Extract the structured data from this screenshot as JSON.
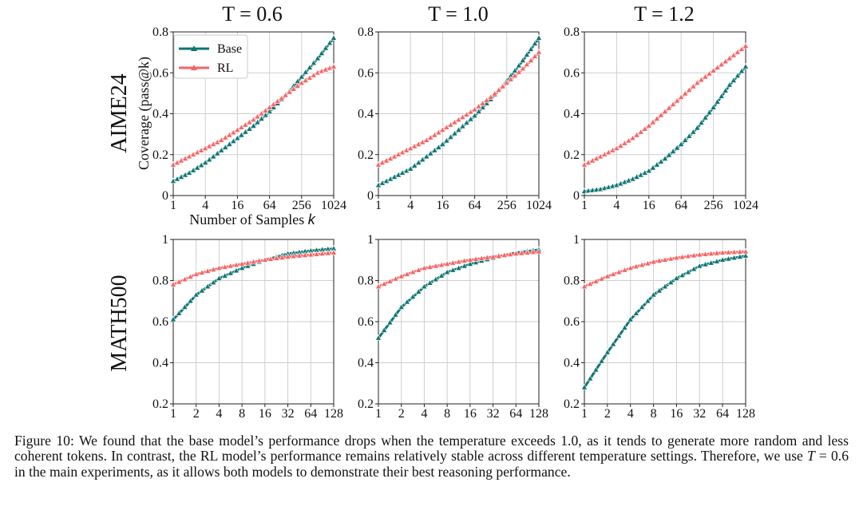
{
  "figure": {
    "column_titles": [
      "T = 0.6",
      "T = 1.0",
      "T = 1.2"
    ],
    "row_titles": [
      "AIME24",
      "MATH500"
    ],
    "ylabel": "Coverage (pass@k)",
    "xlabel_prefix": "Number of Samples ",
    "xlabel_var": "k"
  },
  "caption": {
    "before_t": "Figure 10: We found that the base model’s performance drops when the temperature exceeds 1.0, as it tends to generate more random and less coherent tokens. In contrast, the RL model’s performance remains relatively stable across different temperature settings. Therefore, we use ",
    "t_symbol": "T",
    "eq_value": " = 0.6",
    "after_t": " in the main experiments, as it allows both models to demonstrate their best reasoning performance."
  },
  "colors": {
    "base": "#0e7474",
    "rl": "#f26666",
    "grid": "#cfcfcf"
  },
  "chart_data": [
    {
      "id": "aime-t06",
      "type": "line",
      "row": "AIME24",
      "title": "T = 0.6",
      "x_scale": "log2",
      "xlim": [
        1,
        1024
      ],
      "xticks": [
        1,
        4,
        16,
        64,
        256,
        1024
      ],
      "xtick_labels": [
        "1",
        "4",
        "16",
        "64",
        "256",
        "1024"
      ],
      "ylim": [
        0,
        0.8
      ],
      "yticks": [
        0,
        0.2,
        0.4,
        0.6,
        0.8
      ],
      "ytick_labels": [
        "0",
        "0.2",
        "0.4",
        "0.6",
        "0.8"
      ],
      "ylabel": "Coverage (pass@k)",
      "xlabel": "Number of Samples k",
      "legend": "top-left",
      "grid": true,
      "series": [
        {
          "name": "Base",
          "points": [
            [
              1,
              0.07
            ],
            [
              2,
              0.11
            ],
            [
              4,
              0.16
            ],
            [
              8,
              0.22
            ],
            [
              16,
              0.28
            ],
            [
              32,
              0.34
            ],
            [
              64,
              0.41
            ],
            [
              128,
              0.49
            ],
            [
              256,
              0.58
            ],
            [
              512,
              0.67
            ],
            [
              1024,
              0.77
            ]
          ]
        },
        {
          "name": "RL",
          "points": [
            [
              1,
              0.15
            ],
            [
              2,
              0.19
            ],
            [
              4,
              0.23
            ],
            [
              8,
              0.27
            ],
            [
              16,
              0.32
            ],
            [
              32,
              0.37
            ],
            [
              64,
              0.43
            ],
            [
              128,
              0.49
            ],
            [
              256,
              0.55
            ],
            [
              512,
              0.6
            ],
            [
              1024,
              0.63
            ]
          ]
        }
      ]
    },
    {
      "id": "aime-t10",
      "type": "line",
      "row": "AIME24",
      "title": "T = 1.0",
      "x_scale": "log2",
      "xlim": [
        1,
        1024
      ],
      "xticks": [
        1,
        4,
        16,
        64,
        256,
        1024
      ],
      "xtick_labels": [
        "1",
        "4",
        "16",
        "64",
        "256",
        "1024"
      ],
      "ylim": [
        0,
        0.8
      ],
      "yticks": [
        0,
        0.2,
        0.4,
        0.6,
        0.8
      ],
      "ytick_labels": [
        "0",
        "0.2",
        "0.4",
        "0.6",
        "0.8"
      ],
      "grid": true,
      "series": [
        {
          "name": "Base",
          "points": [
            [
              1,
              0.05
            ],
            [
              2,
              0.09
            ],
            [
              4,
              0.13
            ],
            [
              8,
              0.19
            ],
            [
              16,
              0.25
            ],
            [
              32,
              0.32
            ],
            [
              64,
              0.39
            ],
            [
              128,
              0.47
            ],
            [
              256,
              0.56
            ],
            [
              512,
              0.66
            ],
            [
              1024,
              0.77
            ]
          ]
        },
        {
          "name": "RL",
          "points": [
            [
              1,
              0.15
            ],
            [
              2,
              0.19
            ],
            [
              4,
              0.23
            ],
            [
              8,
              0.27
            ],
            [
              16,
              0.32
            ],
            [
              32,
              0.37
            ],
            [
              64,
              0.42
            ],
            [
              128,
              0.48
            ],
            [
              256,
              0.55
            ],
            [
              512,
              0.62
            ],
            [
              1024,
              0.7
            ]
          ]
        }
      ]
    },
    {
      "id": "aime-t12",
      "type": "line",
      "row": "AIME24",
      "title": "T = 1.2",
      "x_scale": "log2",
      "xlim": [
        1,
        1024
      ],
      "xticks": [
        1,
        4,
        16,
        64,
        256,
        1024
      ],
      "xtick_labels": [
        "1",
        "4",
        "16",
        "64",
        "256",
        "1024"
      ],
      "ylim": [
        0,
        0.8
      ],
      "yticks": [
        0,
        0.2,
        0.4,
        0.6,
        0.8
      ],
      "ytick_labels": [
        "0",
        "0.2",
        "0.4",
        "0.6",
        "0.8"
      ],
      "grid": true,
      "series": [
        {
          "name": "Base",
          "points": [
            [
              1,
              0.02
            ],
            [
              2,
              0.03
            ],
            [
              4,
              0.05
            ],
            [
              8,
              0.08
            ],
            [
              16,
              0.12
            ],
            [
              32,
              0.18
            ],
            [
              64,
              0.25
            ],
            [
              128,
              0.33
            ],
            [
              256,
              0.43
            ],
            [
              512,
              0.54
            ],
            [
              1024,
              0.63
            ]
          ]
        },
        {
          "name": "RL",
          "points": [
            [
              1,
              0.15
            ],
            [
              2,
              0.19
            ],
            [
              4,
              0.23
            ],
            [
              8,
              0.28
            ],
            [
              16,
              0.34
            ],
            [
              32,
              0.41
            ],
            [
              64,
              0.48
            ],
            [
              128,
              0.55
            ],
            [
              256,
              0.61
            ],
            [
              512,
              0.67
            ],
            [
              1024,
              0.73
            ]
          ]
        }
      ]
    },
    {
      "id": "math-t06",
      "type": "line",
      "row": "MATH500",
      "title": "T = 0.6",
      "x_scale": "log2",
      "xlim": [
        1,
        128
      ],
      "xticks": [
        1,
        2,
        4,
        8,
        16,
        32,
        64,
        128
      ],
      "xtick_labels": [
        "1",
        "2",
        "4",
        "8",
        "16",
        "32",
        "64",
        "128"
      ],
      "ylim": [
        0.2,
        1.0
      ],
      "yticks": [
        0.2,
        0.4,
        0.6,
        0.8,
        1.0
      ],
      "ytick_labels": [
        "0.2",
        "0.4",
        "0.6",
        "0.8",
        "1"
      ],
      "grid": true,
      "series": [
        {
          "name": "Base",
          "points": [
            [
              1,
              0.61
            ],
            [
              2,
              0.73
            ],
            [
              4,
              0.81
            ],
            [
              8,
              0.86
            ],
            [
              16,
              0.9
            ],
            [
              32,
              0.93
            ],
            [
              64,
              0.945
            ],
            [
              128,
              0.955
            ]
          ]
        },
        {
          "name": "RL",
          "points": [
            [
              1,
              0.78
            ],
            [
              2,
              0.83
            ],
            [
              4,
              0.86
            ],
            [
              8,
              0.88
            ],
            [
              16,
              0.9
            ],
            [
              32,
              0.915
            ],
            [
              64,
              0.925
            ],
            [
              128,
              0.935
            ]
          ]
        }
      ]
    },
    {
      "id": "math-t10",
      "type": "line",
      "row": "MATH500",
      "title": "T = 1.0",
      "x_scale": "log2",
      "xlim": [
        1,
        128
      ],
      "xticks": [
        1,
        2,
        4,
        8,
        16,
        32,
        64,
        128
      ],
      "xtick_labels": [
        "1",
        "2",
        "4",
        "8",
        "16",
        "32",
        "64",
        "128"
      ],
      "ylim": [
        0.2,
        1.0
      ],
      "yticks": [
        0.2,
        0.4,
        0.6,
        0.8,
        1.0
      ],
      "ytick_labels": [
        "0.2",
        "0.4",
        "0.6",
        "0.8",
        "1"
      ],
      "grid": true,
      "series": [
        {
          "name": "Base",
          "points": [
            [
              1,
              0.52
            ],
            [
              2,
              0.67
            ],
            [
              4,
              0.77
            ],
            [
              8,
              0.84
            ],
            [
              16,
              0.88
            ],
            [
              32,
              0.91
            ],
            [
              64,
              0.935
            ],
            [
              128,
              0.95
            ]
          ]
        },
        {
          "name": "RL",
          "points": [
            [
              1,
              0.77
            ],
            [
              2,
              0.82
            ],
            [
              4,
              0.86
            ],
            [
              8,
              0.88
            ],
            [
              16,
              0.9
            ],
            [
              32,
              0.915
            ],
            [
              64,
              0.93
            ],
            [
              128,
              0.94
            ]
          ]
        }
      ]
    },
    {
      "id": "math-t12",
      "type": "line",
      "row": "MATH500",
      "title": "T = 1.2",
      "x_scale": "log2",
      "xlim": [
        1,
        128
      ],
      "xticks": [
        1,
        2,
        4,
        8,
        16,
        32,
        64,
        128
      ],
      "xtick_labels": [
        "1",
        "2",
        "4",
        "8",
        "16",
        "32",
        "64",
        "128"
      ],
      "ylim": [
        0.2,
        1.0
      ],
      "yticks": [
        0.2,
        0.4,
        0.6,
        0.8,
        1.0
      ],
      "ytick_labels": [
        "0.2",
        "0.4",
        "0.6",
        "0.8",
        "1"
      ],
      "grid": true,
      "series": [
        {
          "name": "Base",
          "points": [
            [
              1,
              0.28
            ],
            [
              2,
              0.45
            ],
            [
              4,
              0.61
            ],
            [
              8,
              0.73
            ],
            [
              16,
              0.81
            ],
            [
              32,
              0.87
            ],
            [
              64,
              0.9
            ],
            [
              128,
              0.92
            ]
          ]
        },
        {
          "name": "RL",
          "points": [
            [
              1,
              0.77
            ],
            [
              2,
              0.82
            ],
            [
              4,
              0.86
            ],
            [
              8,
              0.89
            ],
            [
              16,
              0.91
            ],
            [
              32,
              0.925
            ],
            [
              64,
              0.935
            ],
            [
              128,
              0.94
            ]
          ]
        }
      ]
    }
  ]
}
